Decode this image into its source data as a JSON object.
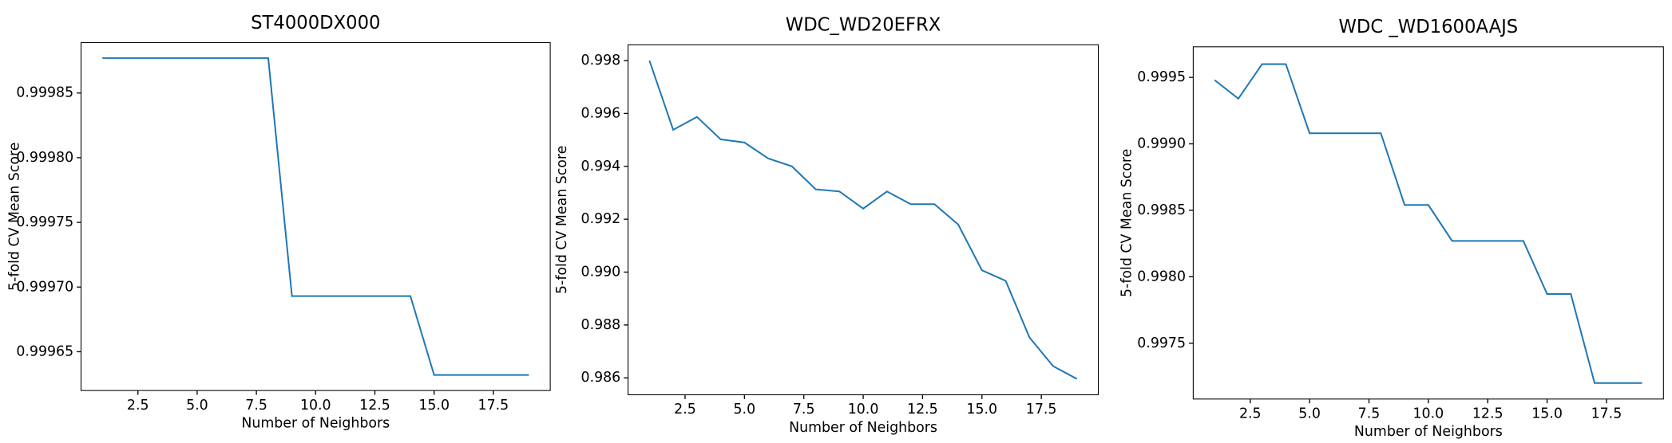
{
  "chart_data": [
    {
      "type": "line",
      "title": "ST4000DX000",
      "x_label": "Number of Neighbors",
      "y_label": "5-fold CV Mean Score",
      "x": [
        1,
        2,
        3,
        4,
        5,
        6,
        7,
        8,
        9,
        10,
        11,
        12,
        13,
        14,
        15,
        16,
        17,
        18,
        19
      ],
      "series": [
        {
          "color": "#1f77b4",
          "values": [
            0.999877,
            0.999877,
            0.999877,
            0.999877,
            0.999877,
            0.999877,
            0.999877,
            0.999877,
            0.999693,
            0.999693,
            0.999693,
            0.999693,
            0.999693,
            0.999693,
            0.999632,
            0.999632,
            0.999632,
            0.999632,
            0.999632
          ]
        }
      ],
      "xlim": [
        0.1,
        19.9
      ],
      "ylim": [
        0.99962,
        0.999889
      ],
      "xticks": [
        2.5,
        {
          "value": 5,
          "label": "5.0"
        },
        7.5,
        {
          "value": 10,
          "label": "10.0"
        },
        12.5,
        {
          "value": 15,
          "label": "15.0"
        },
        17.5
      ],
      "yticks": [
        0.99965,
        {
          "value": 0.9997,
          "label": "0.99970"
        },
        0.99975,
        {
          "value": 0.9998,
          "label": "0.99980"
        },
        0.99985
      ]
    },
    {
      "type": "line",
      "title": "WDC_WD20EFRX",
      "x_label": "Number of Neighbors",
      "y_label": "5-fold CV Mean Score",
      "x": [
        1,
        2,
        3,
        4,
        5,
        6,
        7,
        8,
        9,
        10,
        11,
        12,
        13,
        14,
        15,
        16,
        17,
        18,
        19
      ],
      "series": [
        {
          "color": "#1f77b4",
          "values": [
            0.998,
            0.99538,
            0.99587,
            0.99502,
            0.9949,
            0.9943,
            0.994,
            0.99313,
            0.99305,
            0.9924,
            0.99305,
            0.99257,
            0.99257,
            0.9918,
            0.99007,
            0.98967,
            0.98753,
            0.98644,
            0.98596
          ]
        }
      ],
      "xlim": [
        0.1,
        19.9
      ],
      "ylim": [
        0.98536,
        0.9986
      ],
      "xticks": [
        2.5,
        {
          "value": 5,
          "label": "5.0"
        },
        7.5,
        {
          "value": 10,
          "label": "10.0"
        },
        12.5,
        {
          "value": 15,
          "label": "15.0"
        },
        17.5
      ],
      "yticks": [
        0.986,
        0.988,
        {
          "value": 0.99,
          "label": "0.990"
        },
        0.992,
        0.994,
        0.996,
        0.998
      ]
    },
    {
      "type": "line",
      "title": "WDC _WD1600AAJS",
      "x_label": "Number of Neighbors",
      "y_label": "5-fold CV Mean Score",
      "x": [
        1,
        2,
        3,
        4,
        5,
        6,
        7,
        8,
        9,
        10,
        11,
        12,
        13,
        14,
        15,
        16,
        17,
        18,
        19
      ],
      "series": [
        {
          "color": "#1f77b4",
          "values": [
            0.99948,
            0.99934,
            0.9996,
            0.9996,
            0.99908,
            0.99908,
            0.99908,
            0.99908,
            0.99854,
            0.99854,
            0.99827,
            0.99827,
            0.99827,
            0.99827,
            0.99787,
            0.99787,
            0.9972,
            0.9972,
            0.9972
          ]
        }
      ],
      "xlim": [
        0.1,
        19.9
      ],
      "ylim": [
        0.99708,
        0.99973
      ],
      "xticks": [
        2.5,
        {
          "value": 5,
          "label": "5.0"
        },
        7.5,
        {
          "value": 10,
          "label": "10.0"
        },
        12.5,
        {
          "value": 15,
          "label": "15.0"
        },
        17.5
      ],
      "yticks": [
        0.9975,
        {
          "value": 0.998,
          "label": "0.9980"
        },
        0.9985,
        {
          "value": 0.999,
          "label": "0.9990"
        },
        0.9995
      ]
    }
  ]
}
